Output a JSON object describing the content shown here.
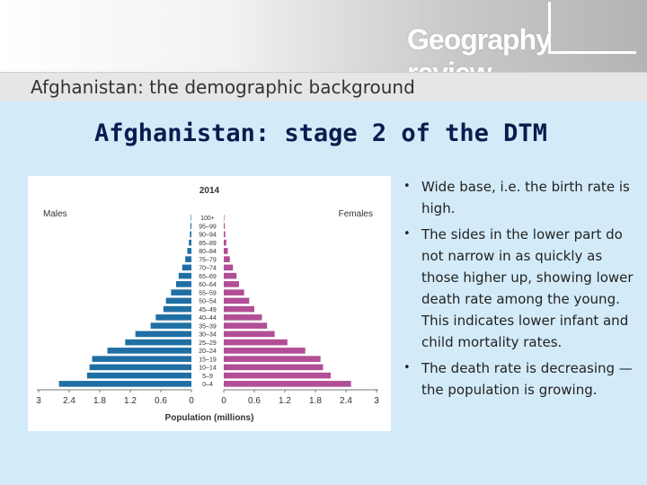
{
  "header": {
    "logo_text": "Geography review",
    "logo_left": "Geography",
    "logo_right": "review"
  },
  "subheader": {
    "text": "Afghanistan: the demographic background"
  },
  "slide": {
    "title": "Afghanistan: stage 2 of the DTM"
  },
  "bullets": [
    "Wide base, i.e. the birth rate is high.",
    "The sides in the lower part do not narrow in as quickly as those higher up, showing lower death rate among the young. This indicates lower infant and child mortality rates.",
    "The death rate is decreasing — the population is growing."
  ],
  "colors": {
    "males": "#1f6fa5",
    "females": "#b24e96",
    "title": "#0a1c4d",
    "background": "#d3ebf9"
  },
  "chart_data": {
    "type": "bar",
    "orientation": "horizontal",
    "title": "2014",
    "xlabel": "Population (millions)",
    "x_tick_labels": [
      "3",
      "2.4",
      "1.8",
      "1.2",
      "0.6",
      "0",
      "0",
      "0.6",
      "1.2",
      "1.8",
      "2.4",
      "3"
    ],
    "xlim": [
      0,
      3
    ],
    "legend": [
      "Males",
      "Females"
    ],
    "categories": [
      "0–4",
      "5–9",
      "10–14",
      "15–19",
      "20–24",
      "25–29",
      "30–34",
      "35–39",
      "40–44",
      "45–49",
      "50–54",
      "55–59",
      "60–64",
      "65–69",
      "70–74",
      "75–79",
      "80–84",
      "85–89",
      "90–94",
      "95–99",
      "100+"
    ],
    "series": [
      {
        "name": "Males",
        "values": [
          2.6,
          2.05,
          2.0,
          1.95,
          1.65,
          1.3,
          1.1,
          0.8,
          0.7,
          0.55,
          0.5,
          0.4,
          0.3,
          0.25,
          0.18,
          0.12,
          0.08,
          0.05,
          0.03,
          0.02,
          0.01
        ]
      },
      {
        "name": "Females",
        "values": [
          2.5,
          2.1,
          1.95,
          1.9,
          1.6,
          1.25,
          1.0,
          0.85,
          0.75,
          0.6,
          0.5,
          0.4,
          0.3,
          0.25,
          0.18,
          0.12,
          0.08,
          0.05,
          0.03,
          0.02,
          0.01
        ]
      }
    ]
  }
}
